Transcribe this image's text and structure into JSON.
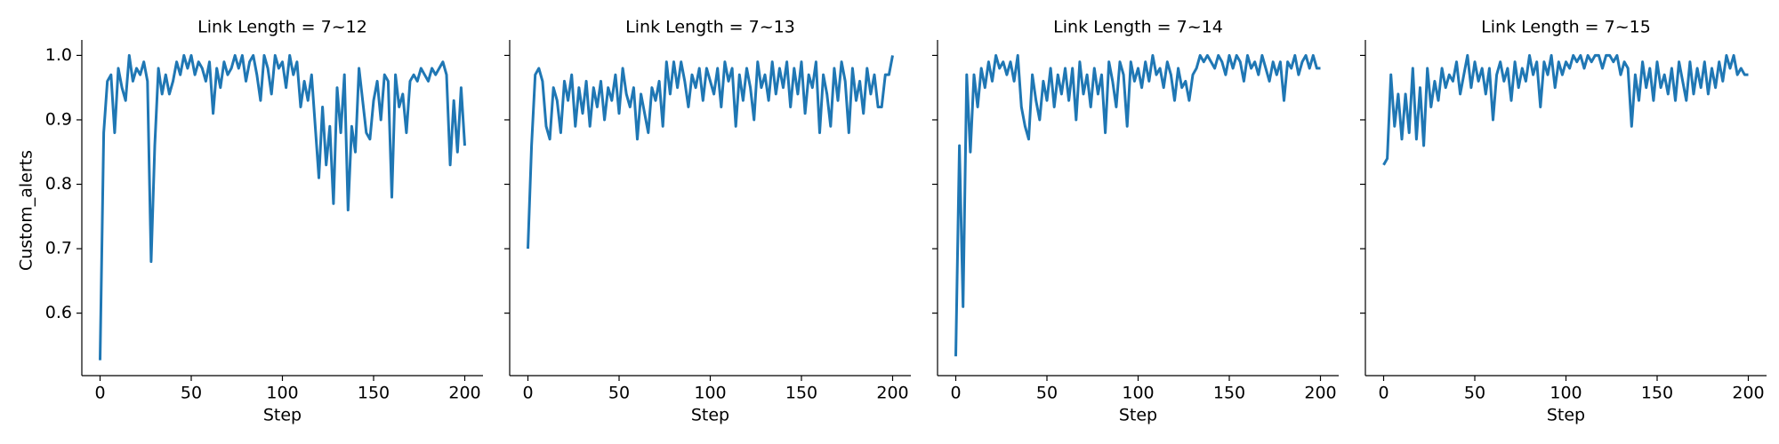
{
  "chart_data": [
    {
      "type": "line",
      "title": "Link Length = 7~12",
      "x_label": "Step",
      "y_label": "Custom_alerts",
      "color": "#1f77b4",
      "xlim": [
        -10,
        210
      ],
      "ylim": [
        0.503,
        1.024
      ],
      "xticks": [
        0,
        50,
        100,
        150,
        200
      ],
      "yticks": [
        0.6,
        0.7,
        0.8,
        0.9,
        {
          "value": 1,
          "label": "1.0"
        }
      ],
      "sharey": false,
      "x": [
        0,
        2,
        4,
        6,
        8,
        10,
        12,
        14,
        16,
        18,
        20,
        22,
        24,
        26,
        28,
        30,
        32,
        34,
        36,
        38,
        40,
        42,
        44,
        46,
        48,
        50,
        52,
        54,
        56,
        58,
        60,
        62,
        64,
        66,
        68,
        70,
        72,
        74,
        76,
        78,
        80,
        82,
        84,
        86,
        88,
        90,
        92,
        94,
        96,
        98,
        100,
        102,
        104,
        106,
        108,
        110,
        112,
        114,
        116,
        118,
        120,
        122,
        124,
        126,
        128,
        130,
        132,
        134,
        136,
        138,
        140,
        142,
        144,
        146,
        148,
        150,
        152,
        154,
        156,
        158,
        160,
        162,
        164,
        166,
        168,
        170,
        172,
        174,
        176,
        178,
        180,
        182,
        184,
        186,
        188,
        190,
        192,
        194,
        196,
        198,
        200
      ],
      "values": [
        0.527,
        0.88,
        0.96,
        0.97,
        0.88,
        0.98,
        0.95,
        0.93,
        1.0,
        0.96,
        0.98,
        0.97,
        0.99,
        0.96,
        0.68,
        0.86,
        0.98,
        0.94,
        0.97,
        0.94,
        0.96,
        0.99,
        0.97,
        1.0,
        0.98,
        1.0,
        0.97,
        0.99,
        0.98,
        0.96,
        0.99,
        0.91,
        0.98,
        0.95,
        0.99,
        0.97,
        0.98,
        1.0,
        0.98,
        1.0,
        0.96,
        0.99,
        1.0,
        0.97,
        0.93,
        1.0,
        0.98,
        0.94,
        1.0,
        0.98,
        0.99,
        0.95,
        1.0,
        0.97,
        0.99,
        0.92,
        0.96,
        0.93,
        0.97,
        0.89,
        0.81,
        0.92,
        0.83,
        0.89,
        0.77,
        0.95,
        0.88,
        0.97,
        0.76,
        0.89,
        0.85,
        0.98,
        0.93,
        0.88,
        0.87,
        0.93,
        0.96,
        0.9,
        0.97,
        0.96,
        0.78,
        0.97,
        0.92,
        0.94,
        0.88,
        0.96,
        0.97,
        0.96,
        0.98,
        0.97,
        0.96,
        0.98,
        0.97,
        0.98,
        0.99,
        0.97,
        0.83,
        0.93,
        0.85,
        0.95,
        0.86
      ]
    },
    {
      "type": "line",
      "title": "Link Length = 7~13",
      "x_label": "Step",
      "color": "#1f77b4",
      "xlim": [
        -10,
        210
      ],
      "ylim": [
        0.503,
        1.024
      ],
      "xticks": [
        0,
        50,
        100,
        150,
        200
      ],
      "yticks": [
        0.6,
        0.7,
        0.8,
        0.9,
        {
          "value": 1,
          "label": "1.0"
        }
      ],
      "sharey": true,
      "x": [
        0,
        2,
        4,
        6,
        8,
        10,
        12,
        14,
        16,
        18,
        20,
        22,
        24,
        26,
        28,
        30,
        32,
        34,
        36,
        38,
        40,
        42,
        44,
        46,
        48,
        50,
        52,
        54,
        56,
        58,
        60,
        62,
        64,
        66,
        68,
        70,
        72,
        74,
        76,
        78,
        80,
        82,
        84,
        86,
        88,
        90,
        92,
        94,
        96,
        98,
        100,
        102,
        104,
        106,
        108,
        110,
        112,
        114,
        116,
        118,
        120,
        122,
        124,
        126,
        128,
        130,
        132,
        134,
        136,
        138,
        140,
        142,
        144,
        146,
        148,
        150,
        152,
        154,
        156,
        158,
        160,
        162,
        164,
        166,
        168,
        170,
        172,
        174,
        176,
        178,
        180,
        182,
        184,
        186,
        188,
        190,
        192,
        194,
        196,
        198,
        200
      ],
      "values": [
        0.7,
        0.86,
        0.97,
        0.98,
        0.96,
        0.89,
        0.87,
        0.95,
        0.93,
        0.88,
        0.96,
        0.93,
        0.97,
        0.89,
        0.95,
        0.91,
        0.96,
        0.89,
        0.95,
        0.92,
        0.96,
        0.9,
        0.95,
        0.93,
        0.97,
        0.91,
        0.98,
        0.94,
        0.92,
        0.95,
        0.87,
        0.94,
        0.91,
        0.88,
        0.95,
        0.93,
        0.96,
        0.89,
        0.99,
        0.94,
        0.99,
        0.95,
        0.99,
        0.96,
        0.92,
        0.97,
        0.95,
        0.98,
        0.93,
        0.98,
        0.96,
        0.94,
        0.98,
        0.92,
        0.99,
        0.96,
        0.98,
        0.89,
        0.97,
        0.93,
        0.98,
        0.95,
        0.9,
        0.99,
        0.95,
        0.97,
        0.93,
        0.99,
        0.94,
        0.98,
        0.95,
        0.99,
        0.92,
        0.98,
        0.94,
        0.99,
        0.91,
        0.97,
        0.95,
        0.99,
        0.88,
        0.97,
        0.94,
        0.89,
        0.98,
        0.93,
        0.99,
        0.96,
        0.88,
        0.98,
        0.93,
        0.96,
        0.91,
        0.98,
        0.94,
        0.97,
        0.92,
        0.92,
        0.97,
        0.97,
        1.0
      ]
    },
    {
      "type": "line",
      "title": "Link Length = 7~14",
      "x_label": "Step",
      "color": "#1f77b4",
      "xlim": [
        -10,
        210
      ],
      "ylim": [
        0.503,
        1.024
      ],
      "xticks": [
        0,
        50,
        100,
        150,
        200
      ],
      "yticks": [
        0.6,
        0.7,
        0.8,
        0.9,
        {
          "value": 1,
          "label": "1.0"
        }
      ],
      "sharey": true,
      "x": [
        0,
        2,
        4,
        6,
        8,
        10,
        12,
        14,
        16,
        18,
        20,
        22,
        24,
        26,
        28,
        30,
        32,
        34,
        36,
        38,
        40,
        42,
        44,
        46,
        48,
        50,
        52,
        54,
        56,
        58,
        60,
        62,
        64,
        66,
        68,
        70,
        72,
        74,
        76,
        78,
        80,
        82,
        84,
        86,
        88,
        90,
        92,
        94,
        96,
        98,
        100,
        102,
        104,
        106,
        108,
        110,
        112,
        114,
        116,
        118,
        120,
        122,
        124,
        126,
        128,
        130,
        132,
        134,
        136,
        138,
        140,
        142,
        144,
        146,
        148,
        150,
        152,
        154,
        156,
        158,
        160,
        162,
        164,
        166,
        168,
        170,
        172,
        174,
        176,
        178,
        180,
        182,
        184,
        186,
        188,
        190,
        192,
        194,
        196,
        198,
        200
      ],
      "values": [
        0.533,
        0.86,
        0.61,
        0.97,
        0.85,
        0.97,
        0.92,
        0.98,
        0.95,
        0.99,
        0.96,
        1.0,
        0.98,
        0.99,
        0.97,
        0.99,
        0.96,
        1.0,
        0.92,
        0.89,
        0.87,
        0.97,
        0.93,
        0.9,
        0.96,
        0.93,
        0.98,
        0.92,
        0.97,
        0.94,
        0.98,
        0.93,
        0.98,
        0.9,
        0.99,
        0.94,
        0.97,
        0.92,
        0.98,
        0.94,
        0.97,
        0.88,
        0.99,
        0.96,
        0.92,
        0.99,
        0.97,
        0.89,
        0.99,
        0.96,
        0.98,
        0.95,
        0.99,
        0.96,
        1.0,
        0.97,
        0.98,
        0.95,
        0.99,
        0.97,
        0.93,
        0.98,
        0.95,
        0.96,
        0.93,
        0.97,
        0.98,
        1.0,
        0.99,
        1.0,
        0.99,
        0.98,
        1.0,
        0.99,
        0.97,
        1.0,
        0.98,
        1.0,
        0.99,
        0.96,
        1.0,
        0.98,
        0.99,
        0.97,
        1.0,
        0.98,
        0.96,
        0.99,
        0.97,
        0.99,
        0.93,
        0.99,
        0.98,
        1.0,
        0.97,
        0.99,
        1.0,
        0.98,
        1.0,
        0.98,
        0.98
      ]
    },
    {
      "type": "line",
      "title": "Link Length = 7~15",
      "x_label": "Step",
      "color": "#1f77b4",
      "xlim": [
        -10,
        210
      ],
      "ylim": [
        0.503,
        1.024
      ],
      "xticks": [
        0,
        50,
        100,
        150,
        200
      ],
      "yticks": [
        0.6,
        0.7,
        0.8,
        0.9,
        {
          "value": 1,
          "label": "1.0"
        }
      ],
      "sharey": true,
      "x": [
        0,
        2,
        4,
        6,
        8,
        10,
        12,
        14,
        16,
        18,
        20,
        22,
        24,
        26,
        28,
        30,
        32,
        34,
        36,
        38,
        40,
        42,
        44,
        46,
        48,
        50,
        52,
        54,
        56,
        58,
        60,
        62,
        64,
        66,
        68,
        70,
        72,
        74,
        76,
        78,
        80,
        82,
        84,
        86,
        88,
        90,
        92,
        94,
        96,
        98,
        100,
        102,
        104,
        106,
        108,
        110,
        112,
        114,
        116,
        118,
        120,
        122,
        124,
        126,
        128,
        130,
        132,
        134,
        136,
        138,
        140,
        142,
        144,
        146,
        148,
        150,
        152,
        154,
        156,
        158,
        160,
        162,
        164,
        166,
        168,
        170,
        172,
        174,
        176,
        178,
        180,
        182,
        184,
        186,
        188,
        190,
        192,
        194,
        196,
        198,
        200
      ],
      "values": [
        0.83,
        0.84,
        0.97,
        0.89,
        0.94,
        0.87,
        0.94,
        0.88,
        0.98,
        0.87,
        0.95,
        0.86,
        0.98,
        0.92,
        0.96,
        0.93,
        0.98,
        0.95,
        0.97,
        0.96,
        0.99,
        0.94,
        0.97,
        1.0,
        0.95,
        0.99,
        0.96,
        0.98,
        0.94,
        0.98,
        0.9,
        0.97,
        0.99,
        0.96,
        0.98,
        0.93,
        0.99,
        0.95,
        0.98,
        0.96,
        1.0,
        0.97,
        0.99,
        0.92,
        0.99,
        0.97,
        1.0,
        0.95,
        0.99,
        0.97,
        0.99,
        0.98,
        1.0,
        0.99,
        1.0,
        0.98,
        1.0,
        0.99,
        1.0,
        1.0,
        0.98,
        1.0,
        1.0,
        0.99,
        1.0,
        0.97,
        0.99,
        0.98,
        0.89,
        0.97,
        0.93,
        0.99,
        0.95,
        0.98,
        0.93,
        0.99,
        0.95,
        0.97,
        0.94,
        0.98,
        0.93,
        0.99,
        0.96,
        0.93,
        0.99,
        0.94,
        0.98,
        0.95,
        0.99,
        0.94,
        0.98,
        0.95,
        0.99,
        0.96,
        1.0,
        0.98,
        1.0,
        0.97,
        0.98,
        0.97,
        0.97
      ]
    }
  ]
}
